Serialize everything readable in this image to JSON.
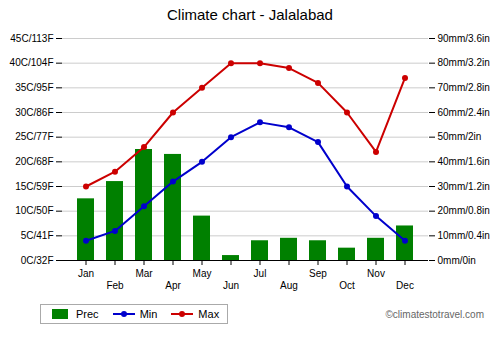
{
  "chart_data": {
    "type": "bar",
    "title": "Climate chart - Jalalabad",
    "categories": [
      "Jan",
      "Feb",
      "Mar",
      "Apr",
      "May",
      "Jun",
      "Jul",
      "Aug",
      "Sep",
      "Oct",
      "Nov",
      "Dec"
    ],
    "series": [
      {
        "name": "Prec",
        "type": "bar",
        "axis": "y2",
        "color": "#008000",
        "values": [
          25,
          32,
          45,
          43,
          18,
          2,
          8,
          9,
          8,
          5,
          9,
          14
        ]
      },
      {
        "name": "Min",
        "type": "line",
        "marker": "circle",
        "color": "#0000cc",
        "values": [
          4,
          6,
          11,
          16,
          20,
          25,
          28,
          27,
          24,
          15,
          9,
          4
        ]
      },
      {
        "name": "Max",
        "type": "line",
        "marker": "circle",
        "color": "#cc0000",
        "values": [
          15,
          18,
          23,
          30,
          35,
          40,
          40,
          39,
          36,
          30,
          22,
          37
        ]
      }
    ],
    "ylim": [
      0,
      45
    ],
    "yticks": [
      {
        "value": 0,
        "label": "0C/32F"
      },
      {
        "value": 5,
        "label": "5C/41F"
      },
      {
        "value": 10,
        "label": "10C/50F"
      },
      {
        "value": 15,
        "label": "15C/59F"
      },
      {
        "value": 20,
        "label": "20C/68F"
      },
      {
        "value": 25,
        "label": "25C/77F"
      },
      {
        "value": 30,
        "label": "30C/86F"
      },
      {
        "value": 35,
        "label": "35C/95F"
      },
      {
        "value": 40,
        "label": "40C/104F"
      },
      {
        "value": 45,
        "label": "45C/113F"
      }
    ],
    "y2lim": [
      0,
      90
    ],
    "y2ticks": [
      {
        "value": 0,
        "label": "0mm/0in"
      },
      {
        "value": 10,
        "label": "10mm/0.4in"
      },
      {
        "value": 20,
        "label": "20mm/0.8in"
      },
      {
        "value": 30,
        "label": "30mm/1.2in"
      },
      {
        "value": 40,
        "label": "40mm/1.6in"
      },
      {
        "value": 50,
        "label": "50mm/2in"
      },
      {
        "value": 60,
        "label": "60mm/2.4in"
      },
      {
        "value": 70,
        "label": "70mm/2.8in"
      },
      {
        "value": 80,
        "label": "80mm/3.2in"
      },
      {
        "value": 90,
        "label": "90mm/3.6in"
      }
    ],
    "grid": true,
    "legend": "bottom",
    "annotations": [
      "©climatestotravel.com"
    ]
  }
}
